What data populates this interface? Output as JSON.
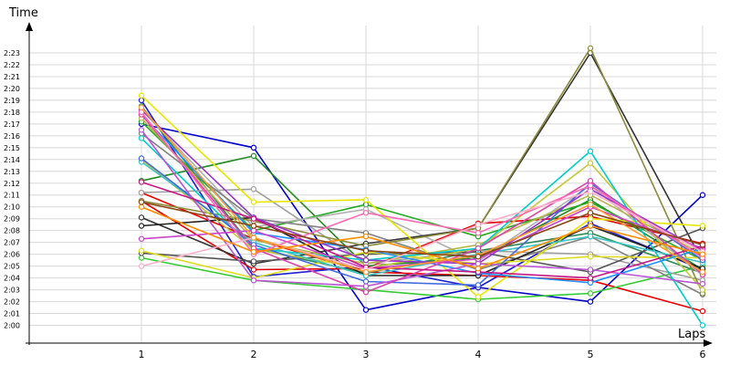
{
  "chart_data": {
    "type": "line",
    "xlabel": "Laps",
    "ylabel": "Time",
    "x": [
      1,
      2,
      3,
      4,
      5,
      6
    ],
    "xlim": [
      0,
      6
    ],
    "ylim": [
      118.5,
      144
    ],
    "y_tick_values": [
      120,
      121,
      122,
      123,
      124,
      125,
      126,
      127,
      128,
      129,
      130,
      131,
      132,
      133,
      134,
      135,
      136,
      137,
      138,
      139,
      140,
      141,
      142,
      143
    ],
    "y_tick_labels": [
      "2:00",
      "2:01",
      "2:02",
      "2:03",
      "2:04",
      "2:05",
      "2:06",
      "2:07",
      "2:08",
      "2:09",
      "2:10",
      "2:11",
      "2:12",
      "2:13",
      "2:14",
      "2:15",
      "2:16",
      "2:17",
      "2:18",
      "2:19",
      "2:20",
      "2:21",
      "2:22",
      "2:23"
    ],
    "x_tick_labels": [
      "1",
      "2",
      "3",
      "4",
      "5",
      "6"
    ],
    "grid": true,
    "legend": "none",
    "series": [
      {
        "color": "#0000cc",
        "values": [
          137.0,
          135.0,
          121.3,
          123.2,
          122.0,
          131.0
        ]
      },
      {
        "color": "#1e1ed2",
        "values": [
          139.0,
          124.1,
          125.0,
          123.2,
          128.6,
          124.7
        ]
      },
      {
        "color": "#e00000",
        "values": [
          130.5,
          124.7,
          124.8,
          128.6,
          129.2,
          126.9
        ]
      },
      {
        "color": "#ee0000",
        "values": [
          131.2,
          127.3,
          124.5,
          124.2,
          123.8,
          121.2
        ]
      },
      {
        "color": "#228b22",
        "values": [
          132.2,
          134.3,
          125.0,
          125.7,
          130.6,
          124.7
        ]
      },
      {
        "color": "#22aa22",
        "values": [
          137.2,
          128.0,
          130.2,
          127.5,
          130.4,
          125.5
        ]
      },
      {
        "color": "#33cc33",
        "values": [
          125.7,
          123.8,
          123.0,
          122.2,
          122.7,
          125.0
        ]
      },
      {
        "color": "#2e8b57",
        "values": [
          138.5,
          126.5,
          124.4,
          126.3,
          127.8,
          124.4
        ]
      },
      {
        "color": "#a0a0a0",
        "values": [
          131.2,
          131.5,
          125.2,
          126.3,
          126.0,
          123.8
        ]
      },
      {
        "color": "#b0b0b0",
        "values": [
          138.2,
          128.3,
          129.8,
          125.4,
          131.8,
          124.2
        ]
      },
      {
        "color": "#808080",
        "values": [
          136.2,
          129.0,
          127.8,
          124.7,
          127.5,
          122.6
        ]
      },
      {
        "color": "#333333",
        "values": [
          129.1,
          125.2,
          126.9,
          128.2,
          143.0,
          125.4
        ]
      },
      {
        "color": "#555555",
        "values": [
          126.1,
          125.4,
          126.0,
          126.2,
          124.5,
          128.2
        ]
      },
      {
        "color": "#222222",
        "values": [
          128.4,
          129.1,
          124.2,
          124.2,
          128.4,
          124.8
        ]
      },
      {
        "color": "#8b8b3c",
        "values": [
          130.5,
          128.8,
          126.7,
          128.2,
          143.4,
          122.7
        ]
      },
      {
        "color": "#b5b54a",
        "values": [
          137.5,
          127.2,
          125.2,
          126.8,
          131.0,
          126.0
        ]
      },
      {
        "color": "#c8c83c",
        "values": [
          134.0,
          126.4,
          124.8,
          126.5,
          133.7,
          123.0
        ]
      },
      {
        "color": "#e6e600",
        "values": [
          139.4,
          130.4,
          130.6,
          122.4,
          129.0,
          128.4
        ]
      },
      {
        "color": "#dddd22",
        "values": [
          126.3,
          124.0,
          126.2,
          125.2,
          125.8,
          125.7
        ]
      },
      {
        "color": "#00cccc",
        "values": [
          135.8,
          126.5,
          125.5,
          126.5,
          134.7,
          120.0
        ]
      },
      {
        "color": "#3cc3c3",
        "values": [
          133.8,
          127.0,
          124.2,
          126.0,
          127.5,
          125.3
        ]
      },
      {
        "color": "#4169e1",
        "values": [
          134.1,
          126.8,
          123.7,
          123.4,
          132.0,
          125.5
        ]
      },
      {
        "color": "#1e90ff",
        "values": [
          137.8,
          127.8,
          126.4,
          124.4,
          123.6,
          126.5
        ]
      },
      {
        "color": "#9932cc",
        "values": [
          138.2,
          129.1,
          125.5,
          125.2,
          131.5,
          126.3
        ]
      },
      {
        "color": "#ba55d3",
        "values": [
          136.5,
          123.8,
          123.3,
          125.2,
          124.7,
          123.5
        ]
      },
      {
        "color": "#cc44cc",
        "values": [
          127.3,
          128.0,
          124.8,
          125.6,
          130.0,
          126.5
        ]
      },
      {
        "color": "#dd44aa",
        "values": [
          137.8,
          126.5,
          122.8,
          126.5,
          132.2,
          124.3
        ]
      },
      {
        "color": "#c71585",
        "values": [
          132.1,
          129.0,
          124.9,
          124.5,
          124.0,
          126.7
        ]
      },
      {
        "color": "#ff69b4",
        "values": [
          138.0,
          126.0,
          129.5,
          127.8,
          131.8,
          125.7
        ]
      },
      {
        "color": "#ffb0c8",
        "values": [
          125.0,
          127.4,
          124.7,
          128.5,
          131.3,
          126.2
        ]
      },
      {
        "color": "#ff8c00",
        "values": [
          130.0,
          126.2,
          127.5,
          124.8,
          128.4,
          126.0
        ]
      },
      {
        "color": "#ff9a30",
        "values": [
          138.4,
          127.4,
          124.5,
          125.9,
          130.2,
          124.5
        ]
      },
      {
        "color": "#8b4513",
        "values": [
          130.4,
          128.4,
          126.3,
          125.8,
          129.5,
          126.8
        ]
      }
    ]
  }
}
